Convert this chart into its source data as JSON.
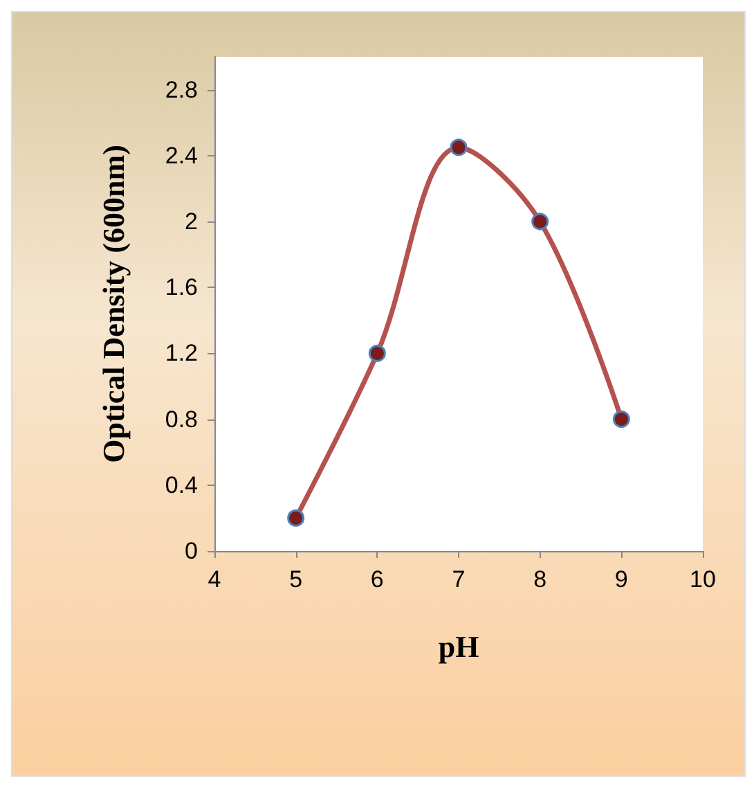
{
  "chart_data": {
    "type": "line",
    "xlabel": "pH",
    "ylabel": "Optical Density (600nm)",
    "x": [
      5,
      6,
      7,
      8,
      9
    ],
    "series": [
      {
        "color": "#b5514e",
        "values": [
          0.2,
          1.2,
          2.45,
          2.0,
          0.8
        ]
      }
    ],
    "xlim": [
      4,
      10
    ],
    "xticks": [
      4,
      5,
      6,
      7,
      8,
      9,
      10
    ],
    "ylim": [
      0,
      3
    ],
    "yticks": [
      0,
      0.4,
      0.8,
      1.2,
      1.6,
      2,
      2.4,
      2.8
    ],
    "marker": "circle",
    "line_style": "solid",
    "grid": false
  }
}
